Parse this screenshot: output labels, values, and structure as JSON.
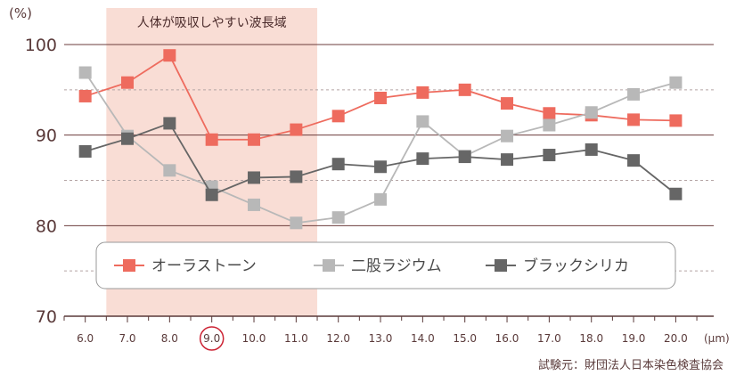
{
  "chart_data": {
    "type": "line",
    "ylabel_unit": "(%)",
    "xunit": "(μm)",
    "ylim": [
      70,
      100
    ],
    "yticks": [
      "100",
      "90",
      "80",
      "70"
    ],
    "ytick_values": [
      100,
      90,
      80,
      70
    ],
    "dashed_values": [
      95,
      85,
      75
    ],
    "x": [
      "6.0",
      "7.0",
      "8.0",
      "9.0",
      "10.0",
      "11.0",
      "12.0",
      "13.0",
      "14.0",
      "15.0",
      "16.0",
      "17.0",
      "18.0",
      "19.0",
      "20.0"
    ],
    "x_values": [
      6,
      7,
      8,
      9,
      10,
      11,
      12,
      13,
      14,
      15,
      16,
      17,
      18,
      19,
      20
    ],
    "xlim": [
      5.5,
      20.9
    ],
    "highlight_band": {
      "label": "人体が吸収しやすい波長域",
      "from": 6.5,
      "to": 11.5,
      "color": "#f9ddd5"
    },
    "highlight_tick": "9.0",
    "series": [
      {
        "name": "オーラストーン",
        "color": "#ee6b5e",
        "values": [
          94.3,
          95.8,
          98.8,
          89.5,
          89.5,
          90.6,
          92.1,
          94.1,
          94.7,
          95.0,
          93.5,
          92.4,
          92.2,
          91.7,
          91.6
        ]
      },
      {
        "name": "二股ラジウム",
        "color": "#b8b8b8",
        "values": [
          96.9,
          89.9,
          86.1,
          84.3,
          82.3,
          80.3,
          80.9,
          82.9,
          91.5,
          87.7,
          89.9,
          91.1,
          92.5,
          94.5,
          95.8
        ]
      },
      {
        "name": "ブラックシリカ",
        "color": "#666666",
        "values": [
          88.2,
          89.6,
          91.3,
          83.4,
          85.3,
          85.4,
          86.8,
          86.5,
          87.4,
          87.6,
          87.3,
          87.8,
          88.4,
          87.2,
          83.5
        ]
      }
    ],
    "source": "試験元：財団法人日本染色検査協会"
  }
}
